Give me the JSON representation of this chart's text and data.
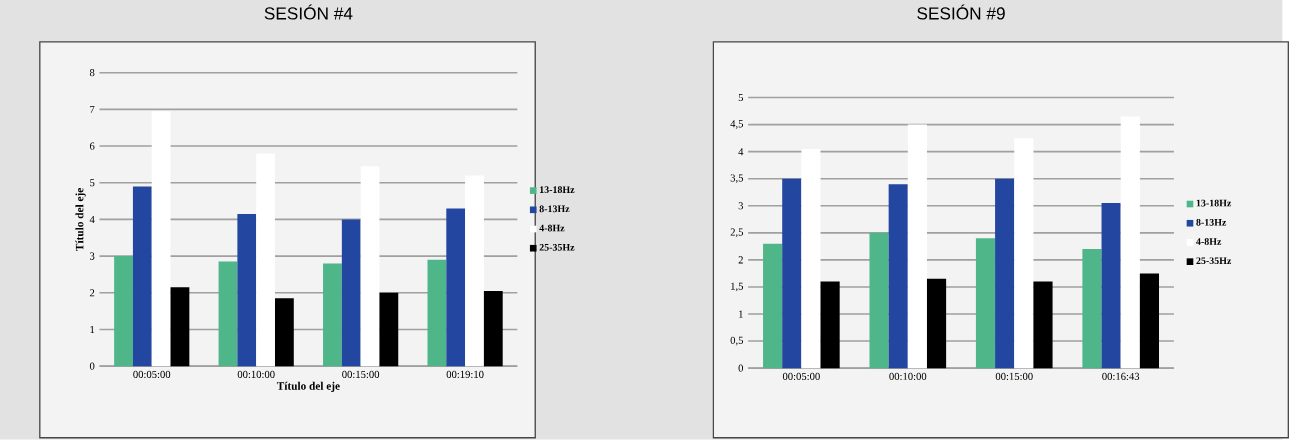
{
  "chart_data": [
    {
      "type": "bar",
      "title": "SESIÓN #4",
      "xlabel": "Título del eje",
      "ylabel": "Título del eje",
      "categories": [
        "00:05:00",
        "00:10:00",
        "00:15:00",
        "00:19:10"
      ],
      "series": [
        {
          "name": "13-18Hz",
          "color": "#4fb68a",
          "values": [
            3.0,
            2.85,
            2.8,
            2.9
          ]
        },
        {
          "name": "8-13Hz",
          "color": "#2346a0",
          "values": [
            4.9,
            4.15,
            4.0,
            4.3
          ]
        },
        {
          "name": "4-8Hz",
          "color": "#ffffff",
          "values": [
            6.95,
            5.8,
            5.45,
            5.2
          ]
        },
        {
          "name": "25-35Hz",
          "color": "#000000",
          "values": [
            2.15,
            1.85,
            2.0,
            2.05
          ]
        }
      ],
      "ylim": [
        0,
        8
      ],
      "yticks": [
        0,
        1,
        2,
        3,
        4,
        5,
        6,
        7,
        8
      ],
      "grid": "y",
      "legend": "right"
    },
    {
      "type": "bar",
      "title": "SESIÓN #9",
      "categories": [
        "00:05:00",
        "00:10:00",
        "00:15:00",
        "00:16:43"
      ],
      "series": [
        {
          "name": "13-18Hz",
          "color": "#4fb68a",
          "values": [
            2.3,
            2.5,
            2.4,
            2.2
          ]
        },
        {
          "name": "8-13Hz",
          "color": "#2346a0",
          "values": [
            3.5,
            3.4,
            3.5,
            3.05
          ]
        },
        {
          "name": "4-8Hz",
          "color": "#ffffff",
          "values": [
            4.05,
            4.5,
            4.25,
            4.65
          ]
        },
        {
          "name": "25-35Hz",
          "color": "#000000",
          "values": [
            1.6,
            1.65,
            1.6,
            1.75
          ]
        }
      ],
      "ylim": [
        0,
        5
      ],
      "yticks": [
        0,
        {
          "value": 0.5,
          "label": "0,5"
        },
        1,
        {
          "value": 1.5,
          "label": "1,5"
        },
        2,
        {
          "value": 2.5,
          "label": "2,5"
        },
        3,
        {
          "value": 3.5,
          "label": "3,5"
        },
        4,
        {
          "value": 4.5,
          "label": "4,5"
        },
        5
      ],
      "grid": "y",
      "legend": "right"
    }
  ]
}
